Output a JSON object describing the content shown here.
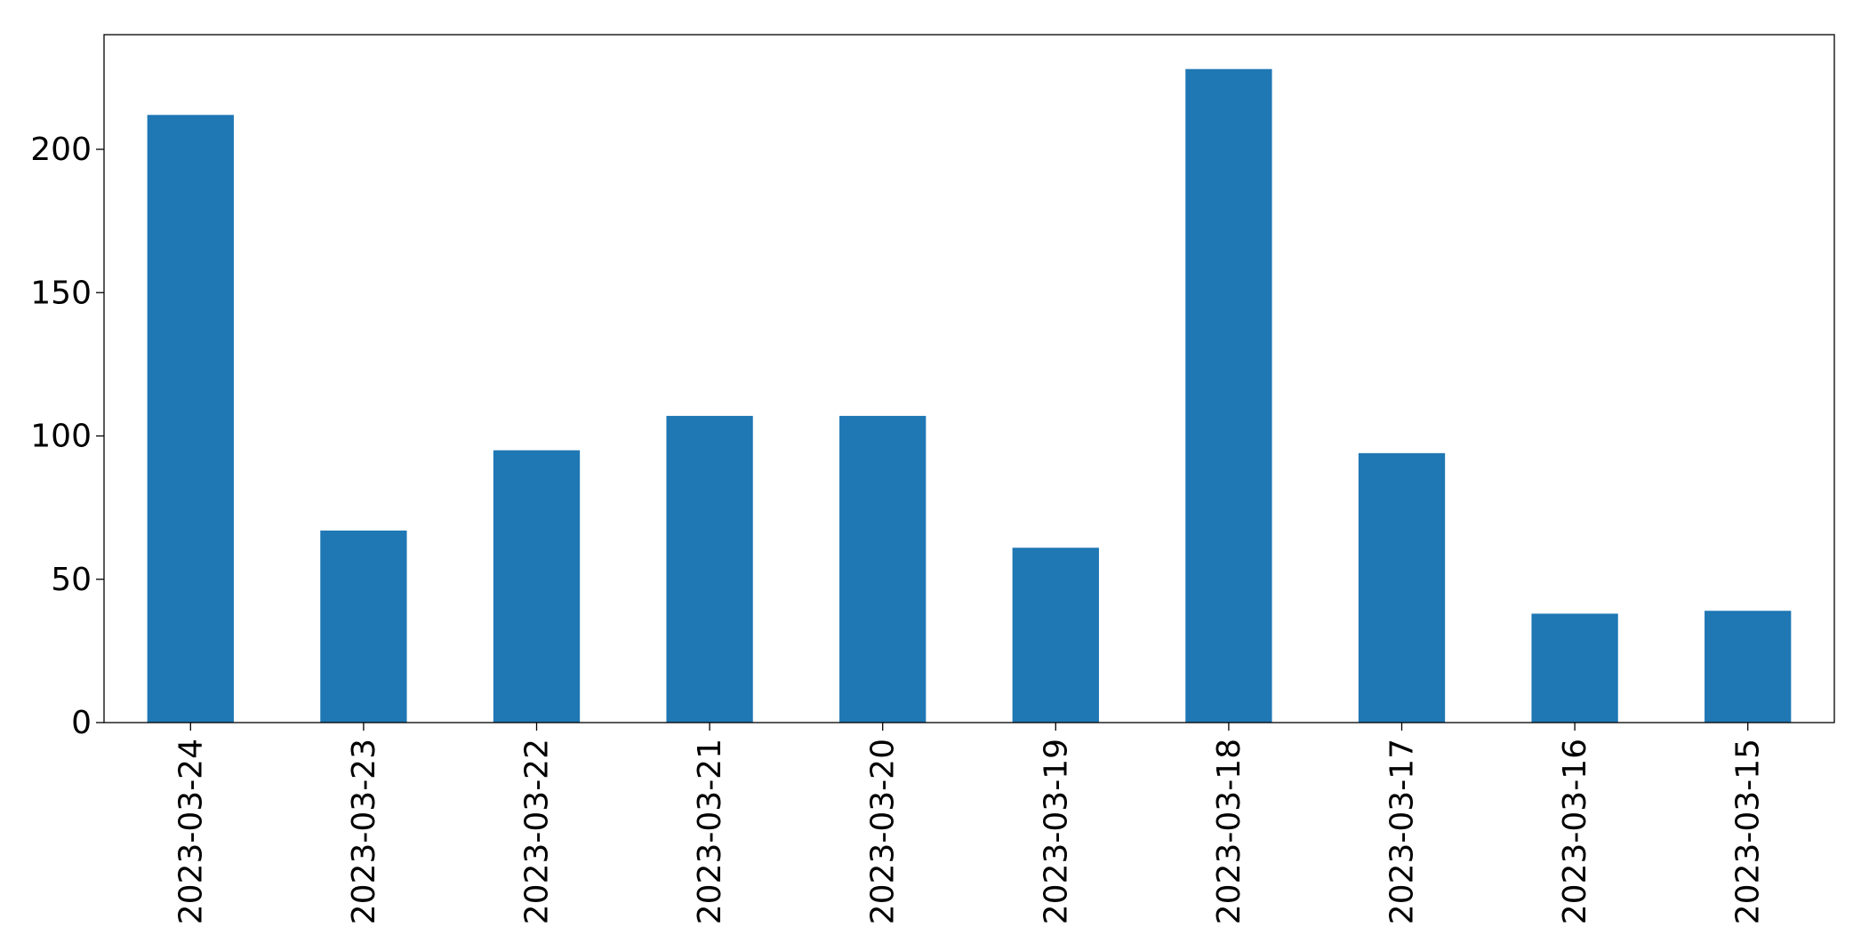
{
  "chart_data": {
    "type": "bar",
    "categories": [
      "2023-03-24",
      "2023-03-23",
      "2023-03-22",
      "2023-03-21",
      "2023-03-20",
      "2023-03-19",
      "2023-03-18",
      "2023-03-17",
      "2023-03-16",
      "2023-03-15"
    ],
    "values": [
      212,
      67,
      95,
      107,
      107,
      61,
      228,
      94,
      38,
      39
    ],
    "title": "",
    "xlabel": "",
    "ylabel": "",
    "ylim": [
      0,
      240
    ],
    "yticks": [
      0,
      50,
      100,
      150,
      200
    ],
    "grid": false,
    "legend": "none",
    "bar_color": "#1f77b4"
  }
}
